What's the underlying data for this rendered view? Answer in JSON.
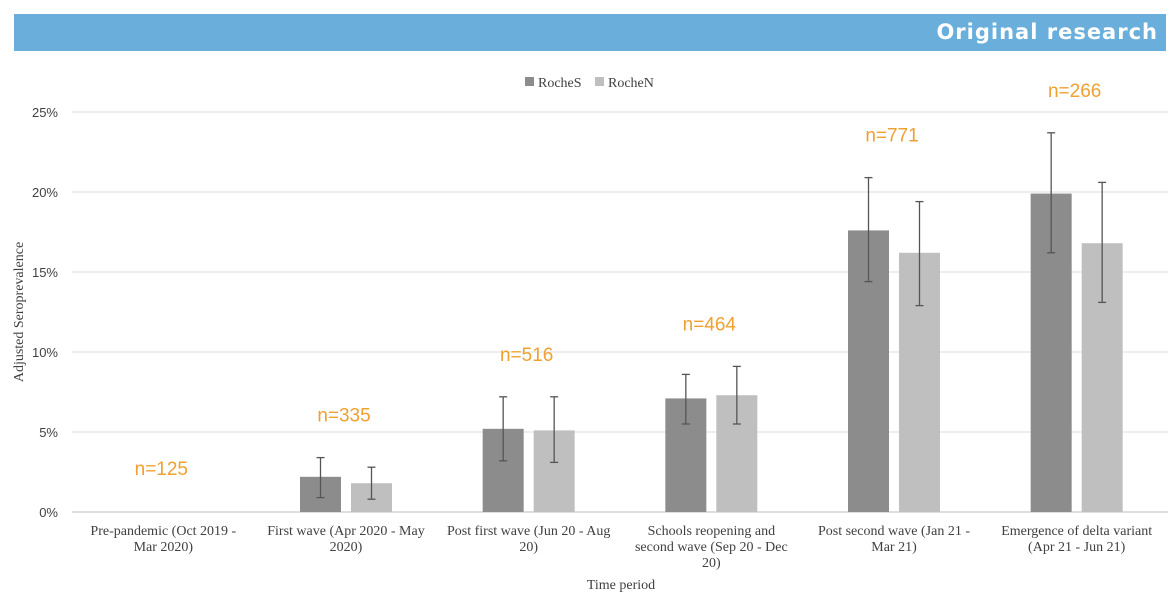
{
  "header": {
    "label": "Original research",
    "color": "#6aaedc"
  },
  "chart_data": {
    "type": "bar",
    "title": "",
    "xlabel": "Time period",
    "ylabel": "Adjusted Seroprevalence",
    "ylim": [
      0,
      25
    ],
    "yticks": [
      "0%",
      "5%",
      "10%",
      "15%",
      "20%",
      "25%"
    ],
    "grid": true,
    "legend_position": "top-center",
    "categories": [
      [
        "Pre-pandemic (Oct 2019 -",
        "Mar 2020)"
      ],
      [
        "First wave (Apr 2020 - May",
        "2020)"
      ],
      [
        "Post first wave (Jun 20 - Aug",
        "20)"
      ],
      [
        "Schools reopening and",
        "second wave (Sep 20 - Dec",
        "20)"
      ],
      [
        "Post second wave (Jan 21 -",
        "Mar 21)"
      ],
      [
        "Emergence of delta variant",
        "(Apr 21 - Jun 21)"
      ]
    ],
    "sample_sizes": [
      "n=125",
      "n=335",
      "n=516",
      "n=464",
      "n=771",
      "n=266"
    ],
    "sample_size_color": "#f0a030",
    "series": [
      {
        "name": "RocheS",
        "color": "#8c8c8c",
        "values": [
          0,
          2.2,
          5.2,
          7.1,
          17.6,
          19.9
        ],
        "error_low": [
          0,
          0.9,
          3.2,
          5.5,
          14.4,
          16.2
        ],
        "error_high": [
          0,
          3.4,
          7.2,
          8.6,
          20.9,
          23.7
        ]
      },
      {
        "name": "RocheN",
        "color": "#bfbfbf",
        "values": [
          0,
          1.8,
          5.1,
          7.3,
          16.2,
          16.8
        ],
        "error_low": [
          0,
          0.8,
          3.1,
          5.5,
          12.9,
          13.1
        ],
        "error_high": [
          0,
          2.8,
          7.2,
          9.1,
          19.4,
          20.6
        ]
      }
    ]
  }
}
